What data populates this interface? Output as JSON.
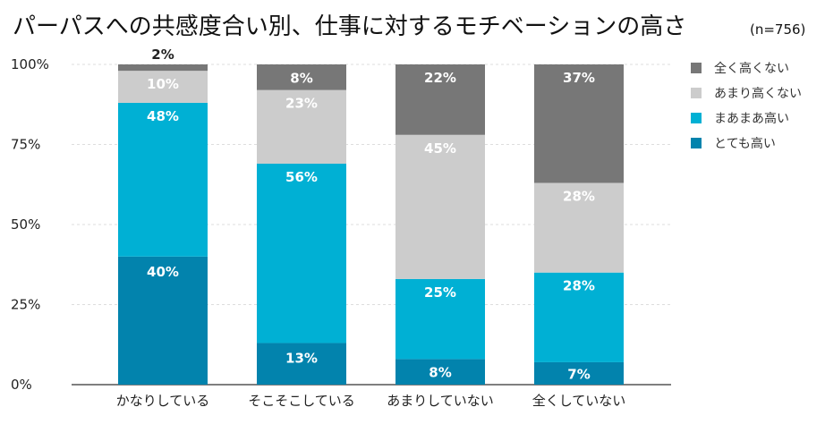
{
  "chart_data": {
    "type": "bar",
    "stacked": true,
    "title": "パーパスへの共感度合い別、仕事に対するモチベーションの高さ",
    "subtitle": "(n=756)",
    "categories": [
      "かなりしている",
      "そこそこしている",
      "あまりしていない",
      "全くしていない"
    ],
    "series": [
      {
        "name": "とても高い",
        "color": "#0283ad",
        "label_color": "#ffffff",
        "values": [
          40,
          13,
          8,
          7
        ]
      },
      {
        "name": "まあまあ高い",
        "color": "#00b0d4",
        "label_color": "#ffffff",
        "values": [
          48,
          56,
          25,
          28
        ]
      },
      {
        "name": "あまり高くない",
        "color": "#cccccc",
        "label_color": "#ffffff",
        "values": [
          10,
          23,
          45,
          28
        ]
      },
      {
        "name": "全く高くない",
        "color": "#777777",
        "label_color": "#ffffff",
        "values": [
          2,
          8,
          22,
          37
        ]
      }
    ],
    "ylim": [
      0,
      100
    ],
    "yticks": [
      0,
      25,
      50,
      75,
      100
    ],
    "ytick_labels": [
      "0%",
      "25%",
      "50%",
      "75%",
      "100%"
    ],
    "value_suffix": "%",
    "grid": true,
    "legend_position": "right",
    "legend_order": [
      "全く高くない",
      "あまり高くない",
      "まあまあ高い",
      "とても高い"
    ]
  }
}
